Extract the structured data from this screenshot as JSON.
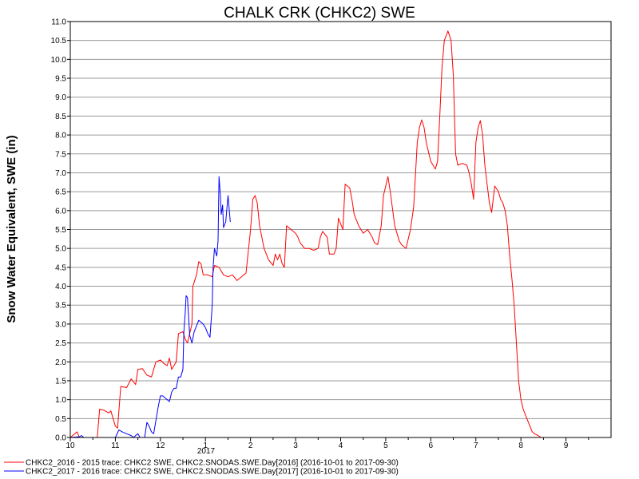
{
  "chart_data": {
    "type": "line",
    "title": "CHALK CRK (CHKC2) SWE",
    "xlabel": "",
    "ylabel": "Snow Water Equivalent, SWE (in)",
    "x_tick_labels": [
      "10",
      "11",
      "12",
      "1",
      "2",
      "3",
      "4",
      "5",
      "6",
      "7",
      "8",
      "9"
    ],
    "x_year_label": "2017",
    "xlim": [
      0,
      12
    ],
    "ylim": [
      0,
      11
    ],
    "y_tick_labels": [
      "0.0",
      "0.5",
      "1.0",
      "1.5",
      "2.0",
      "2.5",
      "3.0",
      "3.5",
      "4.0",
      "4.5",
      "5.0",
      "5.5",
      "6.0",
      "6.5",
      "7.0",
      "7.5",
      "8.0",
      "8.5",
      "9.0",
      "9.5",
      "10.0",
      "10.5",
      "11.0"
    ],
    "grid": true,
    "legend_position": "bottom",
    "series": [
      {
        "name": "CHKC2_2016 - 2015 trace: CHKC2 SWE, CHKC2.SNODAS.SWE.Day[2016] (2016-10-01 to 2017-09-30)",
        "color": "#ff0000",
        "points": [
          [
            0.0,
            0.0
          ],
          [
            0.15,
            0.15
          ],
          [
            0.2,
            0.0
          ],
          [
            0.45,
            0.0
          ],
          [
            0.6,
            0.0
          ],
          [
            0.65,
            0.75
          ],
          [
            0.75,
            0.72
          ],
          [
            0.85,
            0.65
          ],
          [
            0.9,
            0.7
          ],
          [
            0.95,
            0.5
          ],
          [
            1.0,
            0.3
          ],
          [
            1.05,
            0.25
          ],
          [
            1.12,
            1.35
          ],
          [
            1.25,
            1.32
          ],
          [
            1.35,
            1.55
          ],
          [
            1.45,
            1.4
          ],
          [
            1.5,
            1.8
          ],
          [
            1.6,
            1.82
          ],
          [
            1.7,
            1.65
          ],
          [
            1.8,
            1.6
          ],
          [
            1.9,
            2.0
          ],
          [
            2.0,
            2.05
          ],
          [
            2.08,
            1.95
          ],
          [
            2.15,
            1.9
          ],
          [
            2.2,
            2.1
          ],
          [
            2.25,
            1.8
          ],
          [
            2.35,
            2.0
          ],
          [
            2.4,
            2.75
          ],
          [
            2.5,
            2.8
          ],
          [
            2.55,
            2.6
          ],
          [
            2.6,
            2.5
          ],
          [
            2.7,
            3.0
          ],
          [
            2.72,
            4.0
          ],
          [
            2.8,
            4.3
          ],
          [
            2.85,
            4.65
          ],
          [
            2.9,
            4.6
          ],
          [
            2.95,
            4.3
          ],
          [
            3.05,
            4.3
          ],
          [
            3.15,
            4.25
          ],
          [
            3.2,
            4.55
          ],
          [
            3.3,
            4.5
          ],
          [
            3.4,
            4.3
          ],
          [
            3.5,
            4.25
          ],
          [
            3.6,
            4.3
          ],
          [
            3.7,
            4.15
          ],
          [
            3.8,
            4.25
          ],
          [
            3.9,
            4.35
          ],
          [
            4.0,
            5.5
          ],
          [
            4.05,
            6.3
          ],
          [
            4.1,
            6.4
          ],
          [
            4.15,
            6.2
          ],
          [
            4.2,
            5.6
          ],
          [
            4.3,
            5.0
          ],
          [
            4.4,
            4.7
          ],
          [
            4.5,
            4.55
          ],
          [
            4.55,
            4.85
          ],
          [
            4.6,
            4.7
          ],
          [
            4.65,
            4.85
          ],
          [
            4.7,
            4.6
          ],
          [
            4.75,
            4.5
          ],
          [
            4.8,
            5.6
          ],
          [
            4.9,
            5.5
          ],
          [
            5.0,
            5.4
          ],
          [
            5.05,
            5.3
          ],
          [
            5.1,
            5.15
          ],
          [
            5.2,
            5.0
          ],
          [
            5.3,
            5.0
          ],
          [
            5.4,
            4.95
          ],
          [
            5.5,
            5.0
          ],
          [
            5.55,
            5.3
          ],
          [
            5.6,
            5.45
          ],
          [
            5.7,
            5.3
          ],
          [
            5.75,
            4.85
          ],
          [
            5.85,
            4.85
          ],
          [
            5.9,
            5.0
          ],
          [
            5.95,
            5.8
          ],
          [
            6.05,
            5.5
          ],
          [
            6.1,
            6.7
          ],
          [
            6.2,
            6.6
          ],
          [
            6.25,
            6.3
          ],
          [
            6.3,
            5.9
          ],
          [
            6.4,
            5.6
          ],
          [
            6.5,
            5.4
          ],
          [
            6.6,
            5.5
          ],
          [
            6.7,
            5.3
          ],
          [
            6.75,
            5.15
          ],
          [
            6.82,
            5.1
          ],
          [
            6.9,
            5.6
          ],
          [
            6.95,
            6.4
          ],
          [
            7.05,
            6.9
          ],
          [
            7.1,
            6.5
          ],
          [
            7.2,
            5.6
          ],
          [
            7.3,
            5.2
          ],
          [
            7.35,
            5.1
          ],
          [
            7.45,
            5.0
          ],
          [
            7.55,
            5.5
          ],
          [
            7.62,
            6.1
          ],
          [
            7.7,
            7.8
          ],
          [
            7.75,
            8.2
          ],
          [
            7.8,
            8.4
          ],
          [
            7.85,
            8.2
          ],
          [
            7.9,
            7.8
          ],
          [
            8.0,
            7.3
          ],
          [
            8.05,
            7.2
          ],
          [
            8.1,
            7.1
          ],
          [
            8.15,
            7.3
          ],
          [
            8.2,
            8.5
          ],
          [
            8.25,
            9.8
          ],
          [
            8.3,
            10.5
          ],
          [
            8.38,
            10.75
          ],
          [
            8.45,
            10.5
          ],
          [
            8.5,
            9.6
          ],
          [
            8.55,
            7.5
          ],
          [
            8.6,
            7.2
          ],
          [
            8.7,
            7.25
          ],
          [
            8.8,
            7.2
          ],
          [
            8.85,
            7.0
          ],
          [
            8.9,
            6.7
          ],
          [
            8.95,
            6.3
          ],
          [
            9.0,
            7.8
          ],
          [
            9.05,
            8.2
          ],
          [
            9.1,
            8.38
          ],
          [
            9.15,
            8.0
          ],
          [
            9.2,
            7.2
          ],
          [
            9.3,
            6.2
          ],
          [
            9.35,
            5.95
          ],
          [
            9.42,
            6.65
          ],
          [
            9.5,
            6.5
          ],
          [
            9.55,
            6.3
          ],
          [
            9.6,
            6.2
          ],
          [
            9.65,
            6.0
          ],
          [
            9.7,
            5.6
          ],
          [
            9.75,
            4.8
          ],
          [
            9.8,
            4.2
          ],
          [
            9.85,
            3.5
          ],
          [
            9.9,
            2.5
          ],
          [
            9.95,
            1.5
          ],
          [
            10.0,
            1.0
          ],
          [
            10.05,
            0.75
          ],
          [
            10.1,
            0.6
          ],
          [
            10.15,
            0.45
          ],
          [
            10.2,
            0.3
          ],
          [
            10.25,
            0.15
          ],
          [
            10.3,
            0.1
          ],
          [
            10.38,
            0.05
          ],
          [
            10.45,
            0.0
          ],
          [
            12.0,
            0.0
          ]
        ]
      },
      {
        "name": "CHKC2_2017 - 2016 trace: CHKC2 SWE, CHKC2.SNODAS.SWE.Day[2017] (2016-10-01 to 2017-09-30)",
        "color": "#0000ff",
        "points": [
          [
            0.0,
            0.0
          ],
          [
            0.2,
            0.02
          ],
          [
            0.25,
            0.05
          ],
          [
            0.3,
            0.0
          ],
          [
            1.0,
            0.0
          ],
          [
            1.08,
            0.2
          ],
          [
            1.15,
            0.15
          ],
          [
            1.25,
            0.1
          ],
          [
            1.35,
            0.05
          ],
          [
            1.4,
            0.0
          ],
          [
            1.5,
            0.1
          ],
          [
            1.55,
            0.0
          ],
          [
            1.65,
            0.0
          ],
          [
            1.7,
            0.4
          ],
          [
            1.75,
            0.3
          ],
          [
            1.8,
            0.15
          ],
          [
            1.85,
            0.1
          ],
          [
            1.9,
            0.45
          ],
          [
            1.95,
            0.8
          ],
          [
            2.0,
            1.1
          ],
          [
            2.05,
            1.1
          ],
          [
            2.1,
            1.05
          ],
          [
            2.15,
            1.0
          ],
          [
            2.2,
            0.95
          ],
          [
            2.25,
            1.2
          ],
          [
            2.3,
            1.3
          ],
          [
            2.35,
            1.3
          ],
          [
            2.4,
            1.6
          ],
          [
            2.45,
            1.6
          ],
          [
            2.5,
            1.8
          ],
          [
            2.52,
            2.8
          ],
          [
            2.55,
            3.3
          ],
          [
            2.57,
            3.75
          ],
          [
            2.6,
            3.7
          ],
          [
            2.62,
            3.3
          ],
          [
            2.65,
            2.7
          ],
          [
            2.7,
            2.5
          ],
          [
            2.75,
            2.8
          ],
          [
            2.8,
            2.95
          ],
          [
            2.85,
            3.1
          ],
          [
            2.9,
            3.05
          ],
          [
            2.95,
            3.0
          ],
          [
            3.0,
            2.9
          ],
          [
            3.05,
            2.75
          ],
          [
            3.1,
            2.65
          ],
          [
            3.15,
            3.5
          ],
          [
            3.17,
            4.5
          ],
          [
            3.2,
            5.0
          ],
          [
            3.25,
            4.8
          ],
          [
            3.28,
            5.2
          ],
          [
            3.3,
            6.9
          ],
          [
            3.33,
            6.4
          ],
          [
            3.35,
            5.9
          ],
          [
            3.38,
            6.15
          ],
          [
            3.4,
            5.55
          ],
          [
            3.45,
            5.7
          ],
          [
            3.5,
            6.4
          ],
          [
            3.55,
            5.7
          ]
        ]
      }
    ]
  }
}
